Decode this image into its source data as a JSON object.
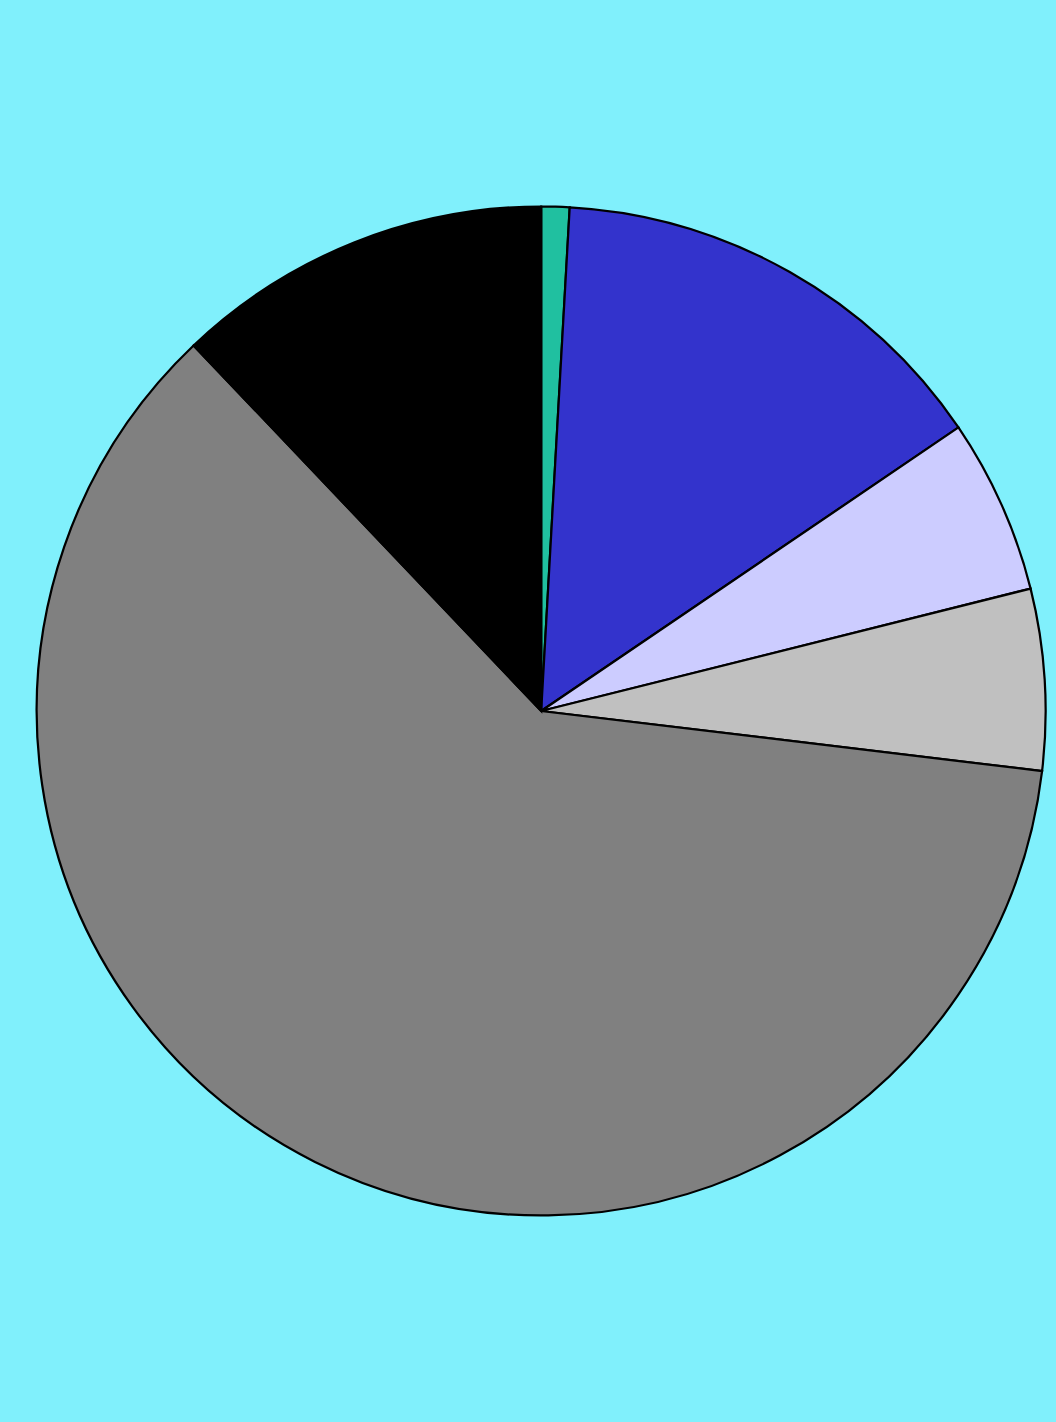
{
  "chart_data": {
    "type": "pie",
    "categories": [
      null,
      null,
      null,
      null,
      null,
      null
    ],
    "values": [
      0.9,
      14.6,
      5.6,
      5.8,
      61.0,
      12.1
    ],
    "colors": [
      "#20c0a0",
      "#3333cc",
      "#ccccff",
      "#c0c0c0",
      "#808080",
      "#000000"
    ]
  }
}
